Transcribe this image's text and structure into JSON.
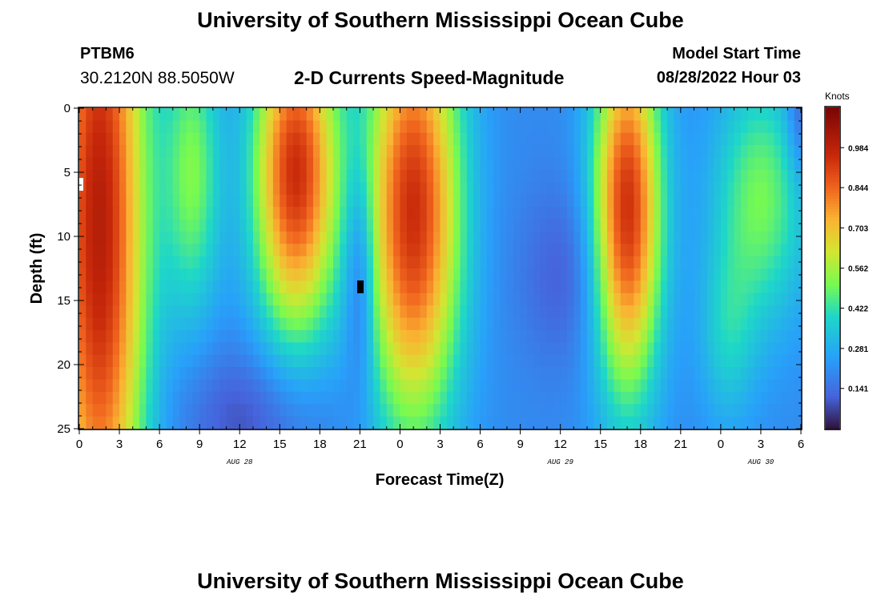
{
  "header": {
    "title": "University of Southern Mississippi Ocean Cube",
    "station_id": "PTBM6",
    "coordinates": "30.2120N  88.5050W",
    "plot_title": "2-D Currents Speed-Magnitude",
    "model_start_label": "Model Start Time",
    "model_start_value": "08/28/2022 Hour 03"
  },
  "footer": {
    "title": "University of Southern Mississippi Ocean Cube"
  },
  "chart_data": {
    "type": "heatmap",
    "title": "2-D Currents Speed-Magnitude",
    "xlabel": "Forecast Time(Z)",
    "ylabel": "Depth (ft)",
    "x_unit": "hours since 08/28/2022 00Z",
    "xlim": [
      0,
      54
    ],
    "ylim": [
      0,
      25
    ],
    "y_inverted": true,
    "x_ticks": [
      0,
      3,
      6,
      9,
      12,
      15,
      18,
      21,
      24,
      27,
      30,
      33,
      36,
      39,
      42,
      45,
      48,
      51,
      54
    ],
    "x_tick_labels": [
      "0",
      "3",
      "6",
      "9",
      "12",
      "15",
      "18",
      "21",
      "0",
      "3",
      "6",
      "9",
      "12",
      "15",
      "18",
      "21",
      "0",
      "3",
      "6"
    ],
    "y_ticks": [
      0,
      5,
      10,
      15,
      20,
      25
    ],
    "y_tick_labels": [
      "0",
      "5",
      "10",
      "15",
      "20",
      "25"
    ],
    "date_labels": [
      {
        "x": 12,
        "text": "AUG 28"
      },
      {
        "x": 36,
        "text": "AUG 29"
      },
      {
        "x": 51,
        "text": "AUG 30"
      }
    ],
    "colorbar": {
      "label": "Knots",
      "range": [
        0,
        1.125
      ],
      "ticks": [
        0.141,
        0.281,
        0.422,
        0.562,
        0.703,
        0.844,
        0.984
      ],
      "tick_labels": [
        "0.141",
        "0.281",
        "0.422",
        "0.562",
        "0.703",
        "0.844",
        "0.984"
      ]
    },
    "features": [
      {
        "x": 1.5,
        "depth": 9,
        "sx": 2.5,
        "sd": 22,
        "speed": 0.8
      },
      {
        "x": 8.5,
        "depth": 5,
        "sx": 1.5,
        "sd": 8,
        "speed": 0.3
      },
      {
        "x": 16.2,
        "depth": 5,
        "sx": 2.2,
        "sd": 9,
        "speed": 0.75
      },
      {
        "x": 25.0,
        "depth": 8,
        "sx": 2.5,
        "sd": 12,
        "speed": 0.75
      },
      {
        "x": 41.0,
        "depth": 8,
        "sx": 1.8,
        "sd": 10,
        "speed": 0.75
      },
      {
        "x": 51.0,
        "depth": 7,
        "sx": 2.5,
        "sd": 7,
        "speed": 0.3
      },
      {
        "x": 48.5,
        "depth": 18,
        "sx": 1.5,
        "sd": 5,
        "speed": 0.15
      },
      {
        "x": 13.0,
        "depth": 24,
        "sx": 4,
        "sd": 4,
        "speed": -0.12
      },
      {
        "x": 21.0,
        "depth": 13,
        "sx": 0.8,
        "sd": 6,
        "speed": -0.2
      },
      {
        "x": 36.5,
        "depth": 13,
        "sx": 2.5,
        "sd": 5,
        "speed": -0.1
      },
      {
        "x": 54.0,
        "depth": 0,
        "sx": 0.8,
        "sd": 4,
        "speed": -0.15
      }
    ],
    "background_speed": 0.2,
    "data_labels": []
  }
}
